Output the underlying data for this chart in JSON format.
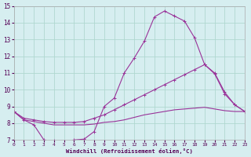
{
  "xlabel": "Windchill (Refroidissement éolien,°C)",
  "xlim": [
    0,
    23
  ],
  "ylim": [
    7,
    15
  ],
  "xticks": [
    0,
    1,
    2,
    3,
    4,
    5,
    6,
    7,
    8,
    9,
    10,
    11,
    12,
    13,
    14,
    15,
    16,
    17,
    18,
    19,
    20,
    21,
    22,
    23
  ],
  "yticks": [
    7,
    8,
    9,
    10,
    11,
    12,
    13,
    14,
    15
  ],
  "bg_color": "#d6eef0",
  "grid_color": "#b0d8d0",
  "line_color": "#993399",
  "line1_x": [
    0,
    1,
    2,
    3,
    4,
    5,
    6,
    7,
    8,
    9,
    10,
    11,
    12,
    13,
    14,
    15,
    16,
    17,
    18,
    19,
    20,
    21,
    22,
    23
  ],
  "line1_y": [
    8.7,
    8.2,
    7.9,
    7.0,
    6.95,
    6.9,
    7.0,
    7.05,
    7.5,
    9.0,
    9.5,
    11.0,
    11.9,
    12.9,
    14.35,
    14.7,
    14.4,
    14.1,
    13.1,
    11.5,
    10.95,
    9.75,
    9.1,
    8.7
  ],
  "line2_x": [
    0,
    1,
    2,
    3,
    4,
    5,
    6,
    7,
    8,
    9,
    10,
    11,
    12,
    13,
    14,
    15,
    16,
    17,
    18,
    19,
    20,
    21,
    22,
    23
  ],
  "line2_y": [
    8.7,
    8.3,
    8.2,
    8.1,
    8.05,
    8.05,
    8.05,
    8.1,
    8.3,
    8.5,
    8.8,
    9.1,
    9.4,
    9.7,
    10.0,
    10.3,
    10.6,
    10.9,
    11.2,
    11.5,
    11.0,
    9.85,
    9.1,
    8.7
  ],
  "line3_x": [
    0,
    1,
    2,
    3,
    4,
    5,
    6,
    7,
    8,
    9,
    10,
    11,
    12,
    13,
    14,
    15,
    16,
    17,
    18,
    19,
    20,
    21,
    22,
    23
  ],
  "line3_y": [
    8.7,
    8.2,
    8.1,
    8.0,
    7.9,
    7.9,
    7.9,
    7.9,
    7.95,
    8.05,
    8.1,
    8.2,
    8.35,
    8.5,
    8.6,
    8.7,
    8.8,
    8.85,
    8.9,
    8.95,
    8.85,
    8.75,
    8.7,
    8.7
  ]
}
